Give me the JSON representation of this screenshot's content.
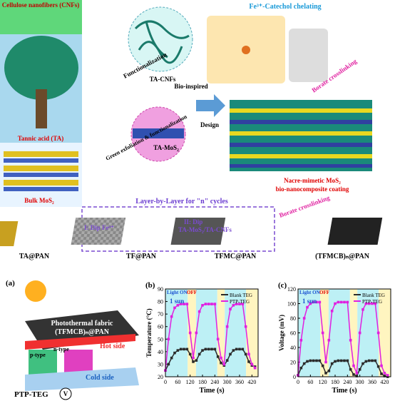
{
  "diagram": {
    "cnf_label": "Cellulose nanofibers (CNFs)",
    "ta_label": "Tannic acid (TA)",
    "bulk_label": "Bulk MoS₂",
    "functionalization": "Functionalization",
    "ta_cnfs": "TA-CNFs",
    "exfoliation": "Green exfoliation & functionalization",
    "ta_mos2": "TA-MoS₂",
    "bio_inspired": "Bio-inspired",
    "design": "Design",
    "chelating": "Fe³⁺-Catechol chelating",
    "borate_top": "Borate crosslinking",
    "nacre_1": "Nacre-mimetic MoS₂",
    "nacre_2": "bio-nanocomposite coating",
    "lbl": "Layer-by-Layer for \"n\" cycles",
    "step1": "I: Dip Fe³⁺",
    "step2a": "II: Dip",
    "step2b": "TA-MoS₂/TA-CNFs",
    "borate_step": "Borate crosslinking",
    "fabrics": [
      "TA@PAN",
      "TF@PAN",
      "TFMC@PAN",
      "(TFMCB)ₙ@PAN"
    ],
    "panel_a": "(a)",
    "fabric_1": "Photothermal fabric",
    "fabric_2": "(TFMCB)ₙ@PAN",
    "hot": "Hot side",
    "cold": "Cold side",
    "p_type": "p-type",
    "n_type": "n-type",
    "device": "PTP-TEG",
    "meter": "V"
  },
  "chart_data": [
    {
      "type": "line",
      "panel": "(b)",
      "annotations": {
        "on": "Light ON",
        "off": "OFF",
        "sun": "1 sun"
      },
      "x_label": "Time (s)",
      "y_label": "Temperature (°C)",
      "x": [
        0,
        15,
        30,
        45,
        60,
        75,
        90,
        105,
        120,
        135,
        150,
        165,
        180,
        195,
        210,
        225,
        240,
        255,
        270,
        285,
        300,
        315,
        330,
        345,
        360,
        375,
        390,
        405,
        420,
        435
      ],
      "series": [
        {
          "name": "Blank TEG",
          "color": "#2b2b2b",
          "values": [
            25,
            30,
            35,
            39,
            41,
            42,
            42,
            42,
            38,
            32,
            33,
            38,
            41,
            42,
            42,
            42,
            42,
            36,
            31,
            29,
            33,
            38,
            41,
            42,
            42,
            42,
            38,
            32,
            29,
            28
          ]
        },
        {
          "name": "PTP-TEG",
          "color": "#e020e0",
          "values": [
            25,
            50,
            68,
            75,
            77,
            78,
            78,
            78,
            55,
            35,
            55,
            72,
            77,
            78,
            78,
            78,
            78,
            50,
            35,
            30,
            60,
            74,
            77,
            78,
            78,
            78,
            60,
            38,
            30,
            27
          ]
        }
      ],
      "xlim": [
        0,
        450
      ],
      "ylim": [
        20,
        90
      ],
      "xticks": [
        0,
        60,
        120,
        180,
        240,
        300,
        360,
        420
      ],
      "yticks": [
        20,
        30,
        40,
        50,
        60,
        70,
        80,
        90
      ]
    },
    {
      "type": "line",
      "panel": "(c)",
      "annotations": {
        "on": "Light ON",
        "off": "OFF",
        "sun": "1 sun"
      },
      "x_label": "Time (s)",
      "y_label": "Voltage (mV)",
      "x": [
        0,
        15,
        30,
        45,
        60,
        75,
        90,
        105,
        120,
        135,
        150,
        165,
        180,
        195,
        210,
        225,
        240,
        255,
        270,
        285,
        300,
        315,
        330,
        345,
        360,
        375,
        390,
        405,
        420,
        435
      ],
      "series": [
        {
          "name": "Blank TEG",
          "color": "#2b2b2b",
          "values": [
            2,
            12,
            18,
            21,
            22,
            22,
            22,
            22,
            15,
            5,
            8,
            18,
            21,
            22,
            22,
            22,
            22,
            10,
            3,
            1,
            10,
            18,
            21,
            22,
            22,
            22,
            14,
            4,
            1,
            0
          ]
        },
        {
          "name": "PTP-TEG",
          "color": "#e020e0",
          "values": [
            2,
            50,
            80,
            95,
            100,
            102,
            102,
            102,
            60,
            20,
            50,
            90,
            100,
            102,
            102,
            102,
            102,
            50,
            15,
            5,
            60,
            92,
            100,
            100,
            100,
            100,
            60,
            15,
            5,
            2
          ]
        }
      ],
      "xlim": [
        0,
        450
      ],
      "ylim": [
        0,
        120
      ],
      "xticks": [
        0,
        60,
        120,
        180,
        240,
        300,
        360,
        420
      ],
      "yticks": [
        0,
        20,
        40,
        60,
        80,
        100,
        120
      ]
    }
  ]
}
